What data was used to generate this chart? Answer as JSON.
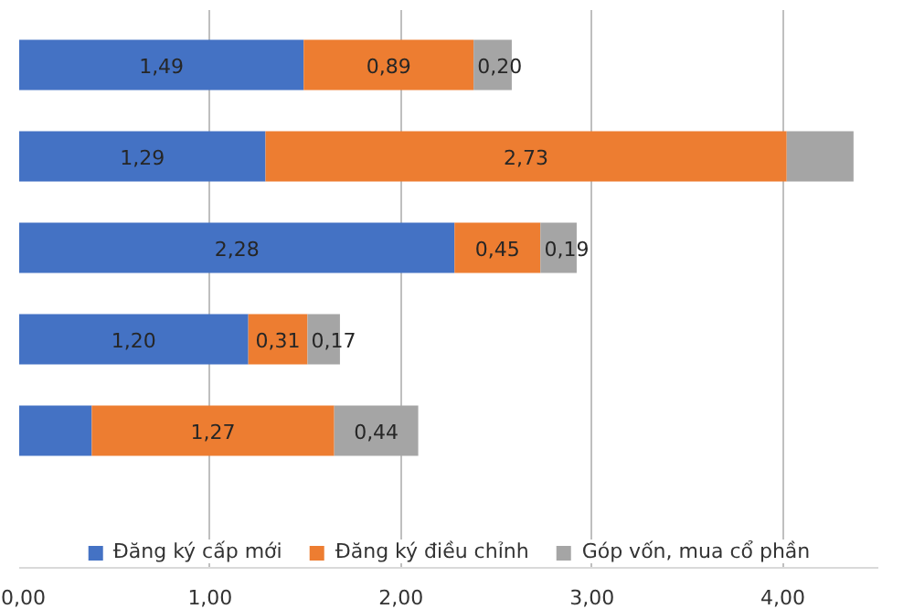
{
  "chart_data": {
    "type": "bar",
    "orientation": "horizontal",
    "stacked": true,
    "categories": [
      null,
      null,
      null,
      null,
      null
    ],
    "series": [
      {
        "name": "Đăng ký cấp mới",
        "color": "#4472c4",
        "values": [
          1.49,
          1.29,
          2.28,
          1.2,
          0.38
        ],
        "value_labels": [
          "1,49",
          "1,29",
          "2,28",
          "1,20",
          null
        ]
      },
      {
        "name": "Đăng ký điều chỉnh",
        "color": "#ed7d31",
        "values": [
          0.89,
          2.73,
          0.45,
          0.31,
          1.27
        ],
        "value_labels": [
          "0,89",
          "2,73",
          "0,45",
          "0,31",
          "1,27"
        ]
      },
      {
        "name": "Góp vốn, mua cổ phần",
        "color": "#a5a5a5",
        "values": [
          0.2,
          0.35,
          0.19,
          0.17,
          0.44
        ],
        "value_labels": [
          "0,20",
          null,
          "0,19",
          "0,17",
          "0,44"
        ]
      }
    ],
    "xlim": [
      0,
      4.5
    ],
    "xticks": [
      {
        "value": 0,
        "label": "0,00"
      },
      {
        "value": 1,
        "label": "1,00"
      },
      {
        "value": 2,
        "label": "2,00"
      },
      {
        "value": 3,
        "label": "3,00"
      },
      {
        "value": 4,
        "label": "4,00"
      }
    ],
    "grid": "x",
    "legend": "bottom"
  }
}
